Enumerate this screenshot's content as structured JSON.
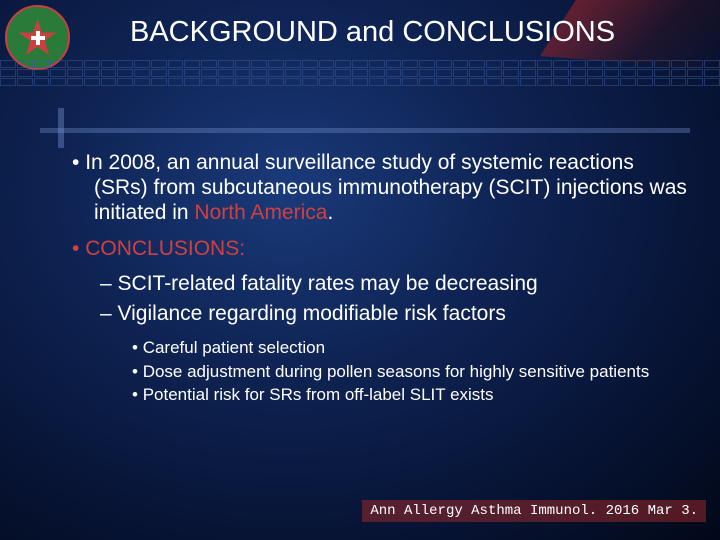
{
  "title": "BACKGROUND and CONCLUSIONS",
  "bullets": {
    "b1_pre": "In 2008, an annual surveillance study of systemic reactions (SRs) from subcutaneous immunotherapy (SCIT) injections was initiated in ",
    "b1_red": "North America",
    "b1_post": ".",
    "b2": "CONCLUSIONS:",
    "b2a": "SCIT-related fatality rates may be decreasing",
    "b2b": "Vigilance regarding modifiable risk factors",
    "b2b1": "Careful patient selection",
    "b2b2": "Dose adjustment during pollen seasons for highly sensitive patients",
    "b2b3": "Potential risk for SRs from off-label SLIT exists"
  },
  "citation": "Ann Allergy Asthma Immunol. 2016 Mar 3.",
  "colors": {
    "bg_center": "#1a3a7a",
    "bg_edge": "#020818",
    "accent_red": "#d04040",
    "text": "#ffffff",
    "grid": "#3a5a9a",
    "citation_bg": "rgba(150,40,40,0.55)"
  }
}
